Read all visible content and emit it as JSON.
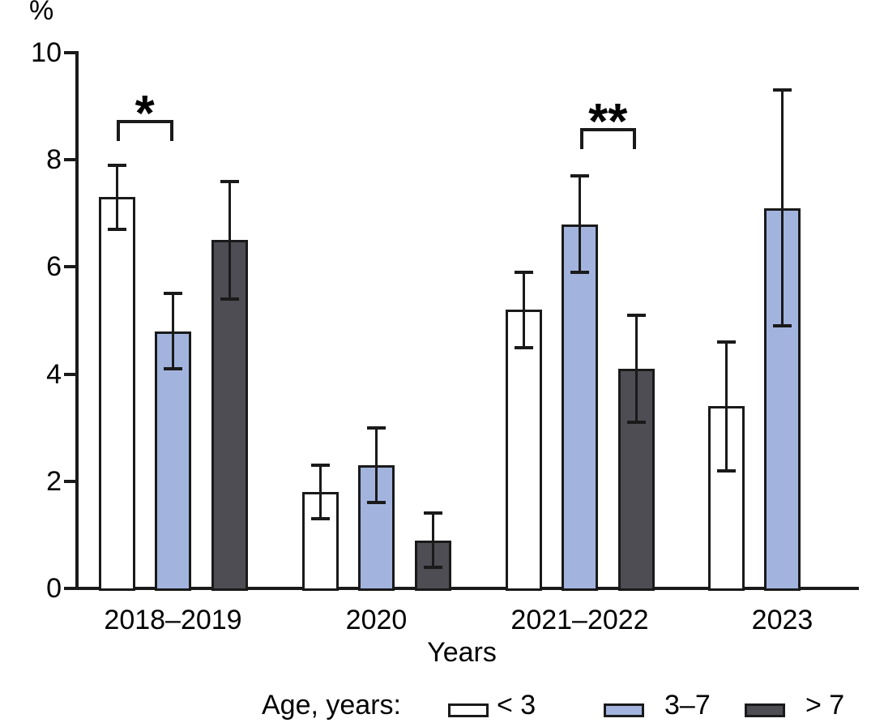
{
  "chart_data": {
    "type": "bar",
    "title": "",
    "ylabel": "%",
    "xlabel": "Years",
    "ylim": [
      0,
      10
    ],
    "yticks": [
      0,
      2,
      4,
      6,
      8,
      10
    ],
    "grid": false,
    "legend_position": "bottom",
    "legend_title": "Age, years:",
    "categories": [
      "2018–2019",
      "2020",
      "2021–2022",
      "2023"
    ],
    "series": [
      {
        "name": "< 3",
        "color": "#ffffff",
        "values": [
          7.3,
          1.8,
          5.2,
          3.4
        ],
        "err_low": [
          6.7,
          1.3,
          4.5,
          2.2
        ],
        "err_high": [
          7.9,
          2.3,
          5.9,
          4.6
        ]
      },
      {
        "name": "3–7",
        "color": "#a2b4de",
        "values": [
          4.8,
          2.3,
          6.8,
          7.1
        ],
        "err_low": [
          4.1,
          1.6,
          5.9,
          4.9
        ],
        "err_high": [
          5.5,
          3.0,
          7.7,
          9.3
        ]
      },
      {
        "name": "> 7",
        "color": "#4d4d53",
        "values": [
          6.5,
          0.9,
          4.1,
          null
        ],
        "err_low": [
          5.4,
          0.4,
          3.1,
          null
        ],
        "err_high": [
          7.6,
          1.4,
          5.1,
          null
        ]
      }
    ],
    "significance": [
      {
        "group": 0,
        "from_series": 0,
        "to_series": 1,
        "label": "*",
        "y_value": 8.75
      },
      {
        "group": 2,
        "from_series": 1,
        "to_series": 2,
        "label": "**",
        "y_value": 8.6
      }
    ],
    "colors": {
      "axis": "#1a1a1a",
      "bar_border": "#1a1a1a",
      "error_bar": "#1a1a1a",
      "text": "#000000"
    }
  }
}
